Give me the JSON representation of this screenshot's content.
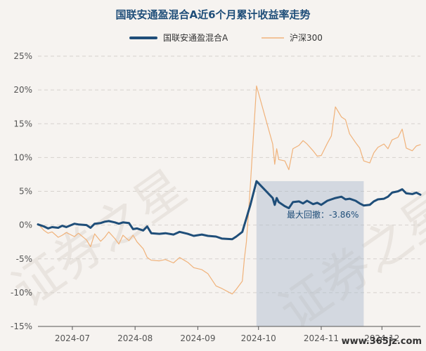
{
  "chart_data": {
    "type": "line",
    "title": "国联安通盈混合A近6个月累计收益率走势",
    "ylim": [
      -15,
      25
    ],
    "y_ticks": [
      "-15%",
      "-10%",
      "-5%",
      "0%",
      "5%",
      "10%",
      "15%",
      "20%",
      "25%"
    ],
    "y_tick_values": [
      -15,
      -10,
      -5,
      0,
      5,
      10,
      15,
      20,
      25
    ],
    "x_ticks": [
      "2024-07",
      "2024-08",
      "2024-09",
      "2024-10",
      "2024-11",
      "2024-12"
    ],
    "x_tick_values": [
      "2024-07-01",
      "2024-08-01",
      "2024-09-01",
      "2024-10-01",
      "2024-11-01",
      "2024-12-01"
    ],
    "xlim": [
      "2024-06-14",
      "2024-12-20"
    ],
    "grid": "horizontal dashed",
    "legend_position": "top-center",
    "series": [
      {
        "name": "国联安通盈混合A",
        "color": "#1f4e79",
        "points": [
          [
            "2024-06-14",
            0.1
          ],
          [
            "2024-06-17",
            -0.2
          ],
          [
            "2024-06-19",
            -0.5
          ],
          [
            "2024-06-21",
            -0.3
          ],
          [
            "2024-06-24",
            -0.4
          ],
          [
            "2024-06-26",
            -0.1
          ],
          [
            "2024-06-28",
            -0.3
          ],
          [
            "2024-07-02",
            0.2
          ],
          [
            "2024-07-04",
            0.1
          ],
          [
            "2024-07-08",
            0.0
          ],
          [
            "2024-07-10",
            -0.4
          ],
          [
            "2024-07-12",
            0.2
          ],
          [
            "2024-07-15",
            0.3
          ],
          [
            "2024-07-17",
            0.5
          ],
          [
            "2024-07-19",
            0.6
          ],
          [
            "2024-07-22",
            0.4
          ],
          [
            "2024-07-24",
            0.2
          ],
          [
            "2024-07-26",
            0.4
          ],
          [
            "2024-07-29",
            0.3
          ],
          [
            "2024-07-31",
            -0.6
          ],
          [
            "2024-08-02",
            -0.5
          ],
          [
            "2024-08-05",
            -0.8
          ],
          [
            "2024-08-07",
            -0.2
          ],
          [
            "2024-08-09",
            -1.2
          ],
          [
            "2024-08-13",
            -1.3
          ],
          [
            "2024-08-16",
            -1.2
          ],
          [
            "2024-08-20",
            -1.4
          ],
          [
            "2024-08-23",
            -1.0
          ],
          [
            "2024-08-27",
            -1.3
          ],
          [
            "2024-08-30",
            -1.6
          ],
          [
            "2024-09-03",
            -1.4
          ],
          [
            "2024-09-06",
            -1.6
          ],
          [
            "2024-09-10",
            -1.7
          ],
          [
            "2024-09-13",
            -2.0
          ],
          [
            "2024-09-18",
            -2.1
          ],
          [
            "2024-09-20",
            -1.7
          ],
          [
            "2024-09-23",
            -1.0
          ],
          [
            "2024-09-24",
            0.0
          ],
          [
            "2024-09-25",
            1.0
          ],
          [
            "2024-09-26",
            2.0
          ],
          [
            "2024-09-27",
            3.0
          ],
          [
            "2024-09-30",
            6.5
          ],
          [
            "2024-10-08",
            4.0
          ],
          [
            "2024-10-09",
            3.0
          ],
          [
            "2024-10-10",
            4.0
          ],
          [
            "2024-10-11",
            3.4
          ],
          [
            "2024-10-14",
            2.8
          ],
          [
            "2024-10-16",
            2.5
          ],
          [
            "2024-10-18",
            3.4
          ],
          [
            "2024-10-21",
            3.5
          ],
          [
            "2024-10-23",
            3.2
          ],
          [
            "2024-10-25",
            3.6
          ],
          [
            "2024-10-28",
            3.1
          ],
          [
            "2024-10-30",
            3.3
          ],
          [
            "2024-11-01",
            3.0
          ],
          [
            "2024-11-04",
            3.6
          ],
          [
            "2024-11-06",
            3.8
          ],
          [
            "2024-11-08",
            4.0
          ],
          [
            "2024-11-11",
            4.2
          ],
          [
            "2024-11-13",
            3.8
          ],
          [
            "2024-11-15",
            3.9
          ],
          [
            "2024-11-18",
            3.6
          ],
          [
            "2024-11-20",
            3.2
          ],
          [
            "2024-11-22",
            2.9
          ],
          [
            "2024-11-25",
            3.0
          ],
          [
            "2024-11-27",
            3.5
          ],
          [
            "2024-11-29",
            3.8
          ],
          [
            "2024-12-02",
            3.9
          ],
          [
            "2024-12-04",
            4.2
          ],
          [
            "2024-12-06",
            4.8
          ],
          [
            "2024-12-09",
            5.0
          ],
          [
            "2024-12-11",
            5.3
          ],
          [
            "2024-12-13",
            4.7
          ],
          [
            "2024-12-16",
            4.6
          ],
          [
            "2024-12-18",
            4.8
          ],
          [
            "2024-12-20",
            4.5
          ]
        ]
      },
      {
        "name": "沪深300",
        "color": "#f0b27a",
        "points": [
          [
            "2024-06-14",
            0.2
          ],
          [
            "2024-06-17",
            -0.8
          ],
          [
            "2024-06-19",
            -1.2
          ],
          [
            "2024-06-21",
            -1.0
          ],
          [
            "2024-06-24",
            -1.8
          ],
          [
            "2024-06-26",
            -1.5
          ],
          [
            "2024-06-28",
            -1.1
          ],
          [
            "2024-07-02",
            -1.7
          ],
          [
            "2024-07-04",
            -1.2
          ],
          [
            "2024-07-08",
            -2.2
          ],
          [
            "2024-07-10",
            -3.2
          ],
          [
            "2024-07-12",
            -1.3
          ],
          [
            "2024-07-15",
            -2.4
          ],
          [
            "2024-07-17",
            -1.8
          ],
          [
            "2024-07-19",
            -1.0
          ],
          [
            "2024-07-22",
            -2.0
          ],
          [
            "2024-07-24",
            -2.8
          ],
          [
            "2024-07-26",
            -1.5
          ],
          [
            "2024-07-29",
            -2.3
          ],
          [
            "2024-07-31",
            -1.5
          ],
          [
            "2024-08-02",
            -2.5
          ],
          [
            "2024-08-05",
            -3.5
          ],
          [
            "2024-08-07",
            -4.8
          ],
          [
            "2024-08-09",
            -5.2
          ],
          [
            "2024-08-13",
            -5.3
          ],
          [
            "2024-08-16",
            -5.1
          ],
          [
            "2024-08-20",
            -5.6
          ],
          [
            "2024-08-23",
            -4.8
          ],
          [
            "2024-08-27",
            -5.5
          ],
          [
            "2024-08-30",
            -6.3
          ],
          [
            "2024-09-03",
            -6.6
          ],
          [
            "2024-09-06",
            -7.2
          ],
          [
            "2024-09-10",
            -9.0
          ],
          [
            "2024-09-13",
            -9.4
          ],
          [
            "2024-09-18",
            -10.2
          ],
          [
            "2024-09-20",
            -9.5
          ],
          [
            "2024-09-23",
            -8.3
          ],
          [
            "2024-09-24",
            -5.0
          ],
          [
            "2024-09-25",
            -2.5
          ],
          [
            "2024-09-26",
            1.5
          ],
          [
            "2024-09-27",
            6.0
          ],
          [
            "2024-09-30",
            20.6
          ],
          [
            "2024-10-08",
            12.0
          ],
          [
            "2024-10-09",
            9.0
          ],
          [
            "2024-10-10",
            11.3
          ],
          [
            "2024-10-11",
            9.7
          ],
          [
            "2024-10-14",
            9.5
          ],
          [
            "2024-10-16",
            8.2
          ],
          [
            "2024-10-18",
            11.3
          ],
          [
            "2024-10-21",
            11.8
          ],
          [
            "2024-10-23",
            12.5
          ],
          [
            "2024-10-25",
            12.0
          ],
          [
            "2024-10-28",
            11.0
          ],
          [
            "2024-10-30",
            10.2
          ],
          [
            "2024-11-01",
            10.3
          ],
          [
            "2024-11-04",
            12.1
          ],
          [
            "2024-11-06",
            13.2
          ],
          [
            "2024-11-08",
            17.5
          ],
          [
            "2024-11-11",
            16.0
          ],
          [
            "2024-11-13",
            15.6
          ],
          [
            "2024-11-15",
            13.5
          ],
          [
            "2024-11-18",
            12.2
          ],
          [
            "2024-11-20",
            11.4
          ],
          [
            "2024-11-22",
            9.5
          ],
          [
            "2024-11-25",
            9.2
          ],
          [
            "2024-11-27",
            10.7
          ],
          [
            "2024-11-29",
            11.5
          ],
          [
            "2024-12-02",
            12.0
          ],
          [
            "2024-12-04",
            11.3
          ],
          [
            "2024-12-06",
            12.6
          ],
          [
            "2024-12-09",
            13.0
          ],
          [
            "2024-12-11",
            14.2
          ],
          [
            "2024-12-13",
            11.4
          ],
          [
            "2024-12-16",
            11.0
          ],
          [
            "2024-12-18",
            11.7
          ],
          [
            "2024-12-20",
            11.9
          ]
        ]
      }
    ],
    "annotations": [
      {
        "text": "最大回撤：-3.86%",
        "type": "max-drawdown",
        "start": "2024-09-30",
        "end": "2024-11-22"
      }
    ]
  },
  "watermarks": [
    "证券之星",
    "证券之星"
  ],
  "site_label": "www.365jz.com"
}
